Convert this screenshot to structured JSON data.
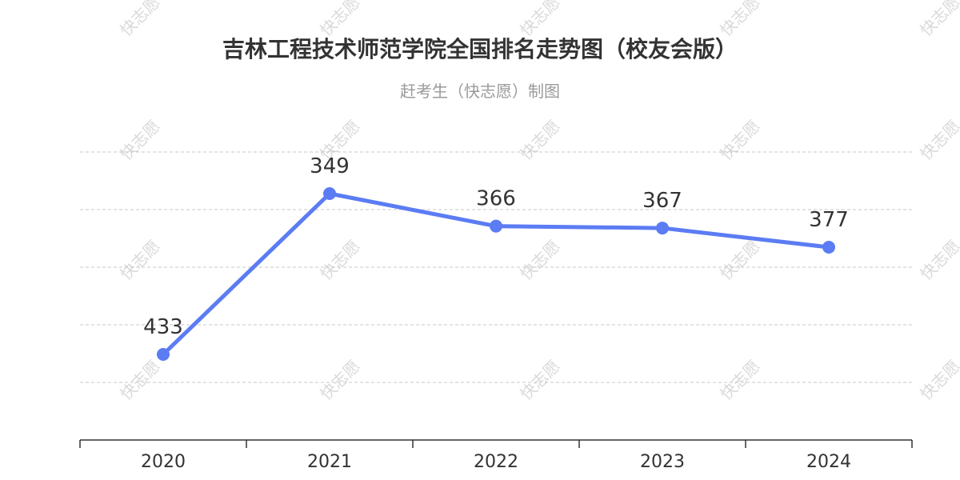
{
  "title": "吉林工程技术师范学院全国排名走势图（校友会版）",
  "subtitle": "赶考生（快志愿）制图",
  "watermark_text": "快志愿",
  "colors": {
    "line": "#5b7cf3",
    "grid": "#c8c8c8",
    "axis": "#333333"
  },
  "chart_data": {
    "type": "line",
    "title": "吉林工程技术师范学院全国排名走势图（校友会版）",
    "subtitle": "赶考生（快志愿）制图",
    "categories": [
      "2020",
      "2021",
      "2022",
      "2023",
      "2024"
    ],
    "series": [
      {
        "values": [
          433,
          349,
          366,
          367,
          377
        ]
      }
    ],
    "y_inverted": true,
    "grid": true,
    "xlabel": "",
    "ylabel": ""
  }
}
